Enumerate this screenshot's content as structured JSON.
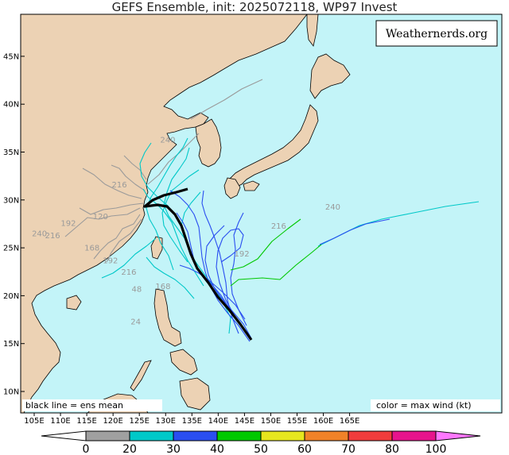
{
  "title": "GEFS Ensemble, init: 2025072118, WP97 Invest",
  "brand": "Weathernerds.org",
  "legend_mean": "black line = ens mean",
  "legend_color": "color = max wind (kt)",
  "lat_labels": [
    "45N",
    "40N",
    "35N",
    "30N",
    "25N",
    "20N",
    "15N",
    "10N"
  ],
  "lon_labels": [
    "105E",
    "110E",
    "115E",
    "120E",
    "125E",
    "130E",
    "135E",
    "140E",
    "145E",
    "150E",
    "155E",
    "160E",
    "165E"
  ],
  "colorbar": {
    "ticks": [
      "0",
      "20",
      "30",
      "40",
      "50",
      "60",
      "70",
      "80",
      "100"
    ],
    "colors": [
      "#ffffff",
      "#a0a0a0",
      "#00c8c8",
      "#2a4ef0",
      "#00c800",
      "#e6e61e",
      "#f08228",
      "#f03c3c",
      "#e6148c",
      "#ff78ff"
    ]
  },
  "hour_labels": [
    {
      "text": "240",
      "lon": 161.8,
      "lat": 29.0
    },
    {
      "text": "216",
      "lon": 151.5,
      "lat": 27.0
    },
    {
      "text": "192",
      "lon": 144.5,
      "lat": 24.1
    },
    {
      "text": "168",
      "lon": 129.5,
      "lat": 20.7
    },
    {
      "text": "48",
      "lon": 124.5,
      "lat": 20.4
    },
    {
      "text": "24",
      "lon": 124.3,
      "lat": 17.0
    },
    {
      "text": "216",
      "lon": 121.2,
      "lat": 31.3
    },
    {
      "text": "240",
      "lon": 106.0,
      "lat": 26.2
    },
    {
      "text": "216",
      "lon": 108.5,
      "lat": 26.0
    },
    {
      "text": "192",
      "lon": 111.5,
      "lat": 27.3
    },
    {
      "text": "168",
      "lon": 116.0,
      "lat": 24.7
    },
    {
      "text": "192",
      "lon": 119.5,
      "lat": 23.4
    },
    {
      "text": "216",
      "lon": 123.0,
      "lat": 22.2
    },
    {
      "text": "120",
      "lon": 117.6,
      "lat": 28.0
    },
    {
      "text": "240",
      "lon": 130.4,
      "lat": 36.0
    }
  ]
}
